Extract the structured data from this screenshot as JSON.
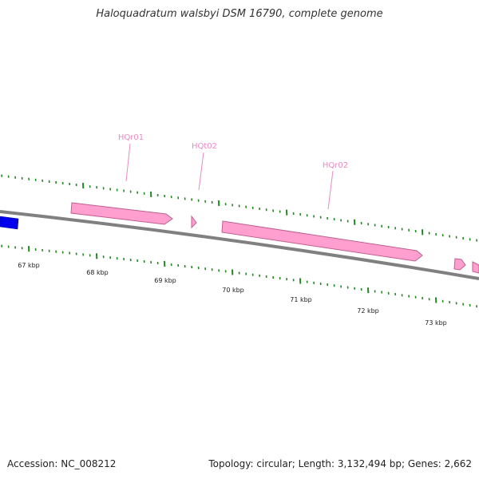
{
  "title": "Haloquadratum walsbyi DSM 16790, complete genome",
  "footer": {
    "accession": "Accession: NC_008212",
    "summary": "Topology: circular; Length: 3,132,494 bp; Genes: 2,662"
  },
  "colors": {
    "rna_gene": "#ff9fcf",
    "rna_gene_edge": "#c0608f",
    "cds_gene": "#0000ee",
    "backbone": "#808080",
    "tick": "#228822",
    "label": "#ee88c0"
  },
  "scale_labels": [
    "67 kbp",
    "68 kbp",
    "69 kbp",
    "70 kbp",
    "71 kbp",
    "72 kbp",
    "73 kbp"
  ],
  "gene_labels": [
    "HQr01",
    "HQt02",
    "HQr02"
  ]
}
